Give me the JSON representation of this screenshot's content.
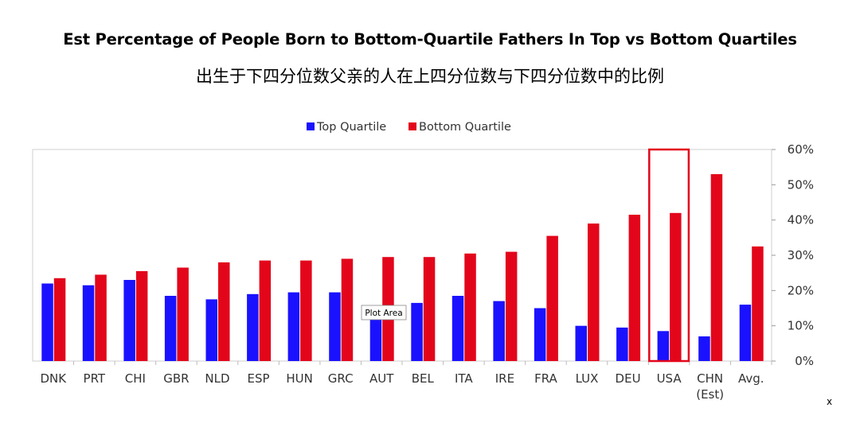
{
  "title": "Est Percentage of People Born to Bottom-Quartile Fathers In Top vs Bottom Quartiles",
  "subtitle": "出生于下四分位数父亲的人在上四分位数与下四分位数中的比例",
  "tooltip": "Plot Area",
  "stray_mark": "x",
  "colors": {
    "top": "#1a12ff",
    "bottom": "#e3061b",
    "highlight": "#e3061b"
  },
  "chart_data": {
    "type": "bar",
    "categories": [
      "DNK",
      "PRT",
      "CHI",
      "GBR",
      "NLD",
      "ESP",
      "HUN",
      "GRC",
      "AUT",
      "BEL",
      "ITA",
      "IRE",
      "FRA",
      "LUX",
      "DEU",
      "USA",
      "CHN\n(Est)",
      "Avg."
    ],
    "series": [
      {
        "name": "Top Quartile",
        "values": [
          22,
          21.5,
          23,
          18.5,
          17.5,
          19,
          19.5,
          19.5,
          13,
          16.5,
          18.5,
          17,
          15,
          10,
          9.5,
          8.5,
          7,
          16
        ]
      },
      {
        "name": "Bottom Quartile",
        "values": [
          23.5,
          24.5,
          25.5,
          26.5,
          28,
          28.5,
          28.5,
          29,
          29.5,
          29.5,
          30.5,
          31,
          35.5,
          39,
          41.5,
          42,
          53,
          32.5
        ]
      }
    ],
    "y_ticks": [
      "0%",
      "10%",
      "20%",
      "30%",
      "40%",
      "50%",
      "60%"
    ],
    "ylim": [
      0,
      60
    ],
    "y_axis_side": "right",
    "legend_position": "top-center",
    "grid": false,
    "highlighted_category": "USA"
  }
}
